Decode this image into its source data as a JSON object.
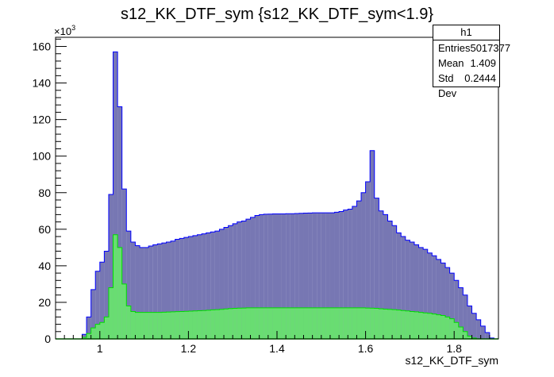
{
  "chart_data": {
    "type": "bar",
    "title": "s12_KK_DTF_sym {s12_KK_DTF_sym<1.9}",
    "xlabel": "s12_KK_DTF_sym",
    "ylabel": "",
    "y_exponent_label": "×10",
    "y_exponent_power": "3",
    "xlim": [
      0.9,
      1.9
    ],
    "ylim": [
      0,
      165000
    ],
    "x_ticks": [
      1,
      1.2,
      1.4,
      1.6,
      1.8
    ],
    "x_tick_labels": [
      "1",
      "1.2",
      "1.4",
      "1.6",
      "1.8"
    ],
    "y_ticks": [
      0,
      20000,
      40000,
      60000,
      80000,
      100000,
      120000,
      140000,
      160000
    ],
    "y_tick_labels": [
      "0",
      "20",
      "40",
      "60",
      "80",
      "100",
      "120",
      "140",
      "160"
    ],
    "bin_width": 0.01,
    "x": [
      0.965,
      0.975,
      0.985,
      0.995,
      1.005,
      1.015,
      1.025,
      1.035,
      1.045,
      1.055,
      1.065,
      1.075,
      1.085,
      1.095,
      1.105,
      1.115,
      1.125,
      1.135,
      1.145,
      1.155,
      1.165,
      1.175,
      1.185,
      1.195,
      1.205,
      1.215,
      1.225,
      1.235,
      1.245,
      1.255,
      1.265,
      1.275,
      1.285,
      1.295,
      1.305,
      1.315,
      1.325,
      1.335,
      1.345,
      1.355,
      1.365,
      1.375,
      1.385,
      1.395,
      1.405,
      1.415,
      1.425,
      1.435,
      1.445,
      1.455,
      1.465,
      1.475,
      1.485,
      1.495,
      1.505,
      1.515,
      1.525,
      1.535,
      1.545,
      1.555,
      1.565,
      1.575,
      1.585,
      1.595,
      1.605,
      1.615,
      1.625,
      1.635,
      1.645,
      1.655,
      1.665,
      1.675,
      1.685,
      1.695,
      1.705,
      1.715,
      1.725,
      1.735,
      1.745,
      1.755,
      1.765,
      1.775,
      1.785,
      1.795,
      1.805,
      1.815,
      1.825,
      1.835,
      1.845,
      1.855,
      1.865,
      1.875,
      1.885,
      1.895
    ],
    "series": [
      {
        "name": "",
        "color": "#0000ff",
        "fill": "#4a4a9a",
        "values": [
          2500,
          12000,
          27000,
          37000,
          42000,
          48000,
          79000,
          157000,
          127000,
          82000,
          59000,
          53000,
          51000,
          50000,
          50000,
          50800,
          51500,
          52000,
          52500,
          53000,
          53500,
          54500,
          55000,
          55500,
          56000,
          56500,
          57000,
          57500,
          58000,
          58500,
          59000,
          60000,
          61000,
          62000,
          63000,
          64000,
          64500,
          65500,
          66500,
          67500,
          68000,
          68200,
          68300,
          68400,
          68400,
          68400,
          68500,
          68500,
          68600,
          68700,
          68800,
          68900,
          69000,
          69000,
          69000,
          69000,
          69000,
          69300,
          69700,
          70500,
          71000,
          72500,
          75500,
          80000,
          86000,
          103000,
          77000,
          70000,
          68000,
          64500,
          62000,
          58000,
          56000,
          54000,
          53000,
          51500,
          50000,
          49000,
          47000,
          45500,
          43500,
          41500,
          39000,
          36000,
          32000,
          28000,
          24000,
          18000,
          14000,
          10500,
          7000,
          3500,
          500,
          0
        ]
      },
      {
        "name": "",
        "color": "#00dd00",
        "fill": "#66ee66",
        "values": [
          800,
          3000,
          6000,
          8000,
          9000,
          12000,
          28000,
          57000,
          50000,
          30000,
          18000,
          15000,
          14500,
          14500,
          14500,
          14500,
          14500,
          14500,
          14600,
          14700,
          14800,
          14900,
          15000,
          15100,
          15200,
          15300,
          15400,
          15500,
          15700,
          15900,
          16000,
          16200,
          16400,
          16600,
          16700,
          16800,
          16900,
          17000,
          17000,
          17000,
          17000,
          17000,
          17000,
          17000,
          17000,
          17000,
          17000,
          17000,
          17000,
          17000,
          17000,
          17000,
          17000,
          17000,
          17000,
          17000,
          17000,
          17000,
          17000,
          17000,
          17000,
          17000,
          17000,
          17000,
          16900,
          16800,
          16700,
          16500,
          16300,
          16200,
          16000,
          15800,
          15500,
          15300,
          15000,
          14800,
          14500,
          14200,
          14000,
          13600,
          13200,
          12800,
          12000,
          11000,
          9000,
          6500,
          4000,
          1500,
          500,
          0,
          0,
          0,
          0,
          0
        ]
      }
    ],
    "grid": false,
    "legend": "none"
  },
  "stats": {
    "title": "h1",
    "rows": [
      {
        "label": "Entries",
        "value": "5017377"
      },
      {
        "label": "Mean",
        "value": "1.409"
      },
      {
        "label": "Std Dev",
        "value": "0.2444"
      }
    ]
  }
}
